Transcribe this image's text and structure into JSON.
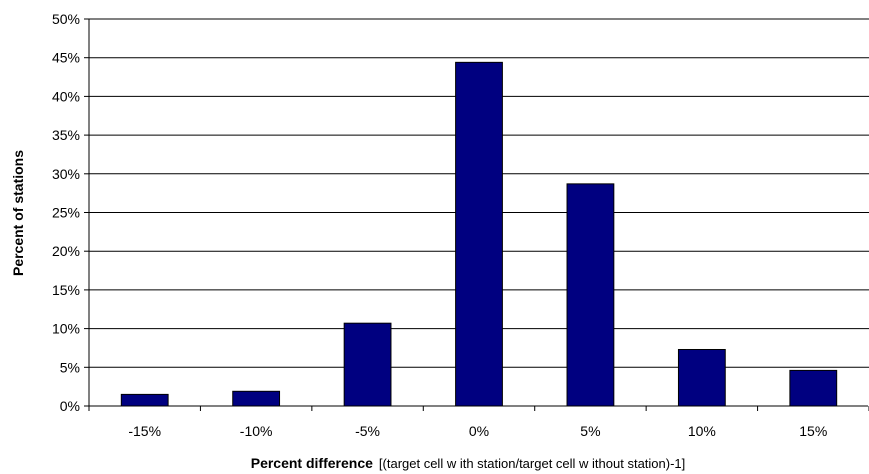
{
  "chart_data": {
    "type": "bar",
    "categories": [
      "-15%",
      "-10%",
      "-5%",
      "0%",
      "5%",
      "10%",
      "15%"
    ],
    "values": [
      1.5,
      1.9,
      10.7,
      44.4,
      28.7,
      7.3,
      4.6
    ],
    "ylim": [
      0,
      50
    ],
    "yticks": [
      "0%",
      "5%",
      "10%",
      "15%",
      "20%",
      "25%",
      "30%",
      "35%",
      "40%",
      "45%",
      "50%"
    ],
    "ylabel": "Percent of stations",
    "xlabel": "Percent difference",
    "xlabel_sub": "[(target cell w ith station/target cell w ithout station)-1]",
    "grid": true,
    "bar_color": "#000080"
  }
}
